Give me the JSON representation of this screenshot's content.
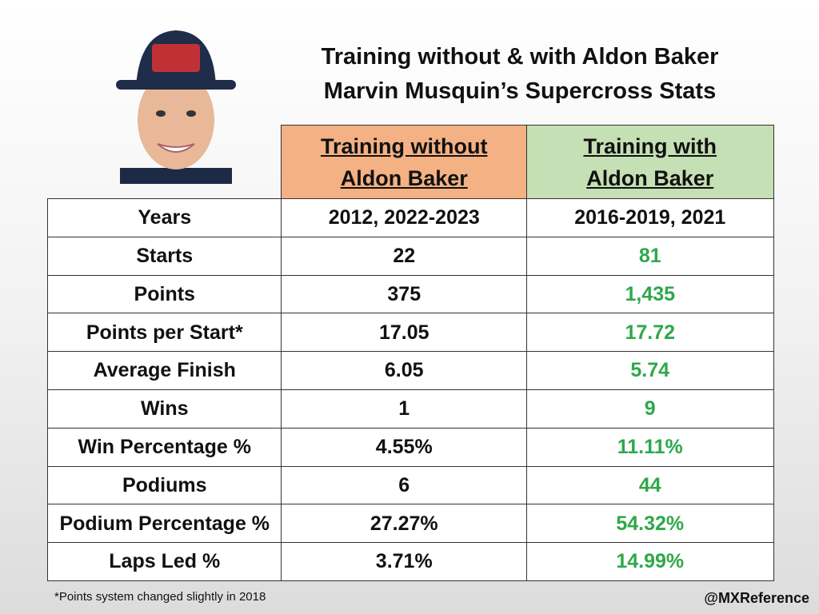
{
  "header": {
    "title": "Training without & with Aldon Baker",
    "subtitle": "Marvin Musquin’s Supercross Stats"
  },
  "table": {
    "columns": [
      "Training without\nAldon Baker",
      "Training with\nAldon Baker"
    ],
    "rows": [
      [
        "Years",
        "2012, 2022-2023",
        "2016-2019, 2021"
      ],
      [
        "Starts",
        "22",
        "81"
      ],
      [
        "Points",
        "375",
        "1,435"
      ],
      [
        "Points per Start*",
        "17.05",
        "17.72"
      ],
      [
        "Average Finish",
        "6.05",
        "5.74"
      ],
      [
        "Wins",
        "1",
        "9"
      ],
      [
        "Win Percentage %",
        "4.55%",
        "11.11%"
      ],
      [
        "Podiums",
        "6",
        "44"
      ],
      [
        "Podium Percentage %",
        "27.27%",
        "54.32%"
      ],
      [
        "Laps Led %",
        "3.71%",
        "14.99%"
      ]
    ]
  },
  "footnote": "*Points system changed slightly in 2018",
  "credit": "@MXReference"
}
